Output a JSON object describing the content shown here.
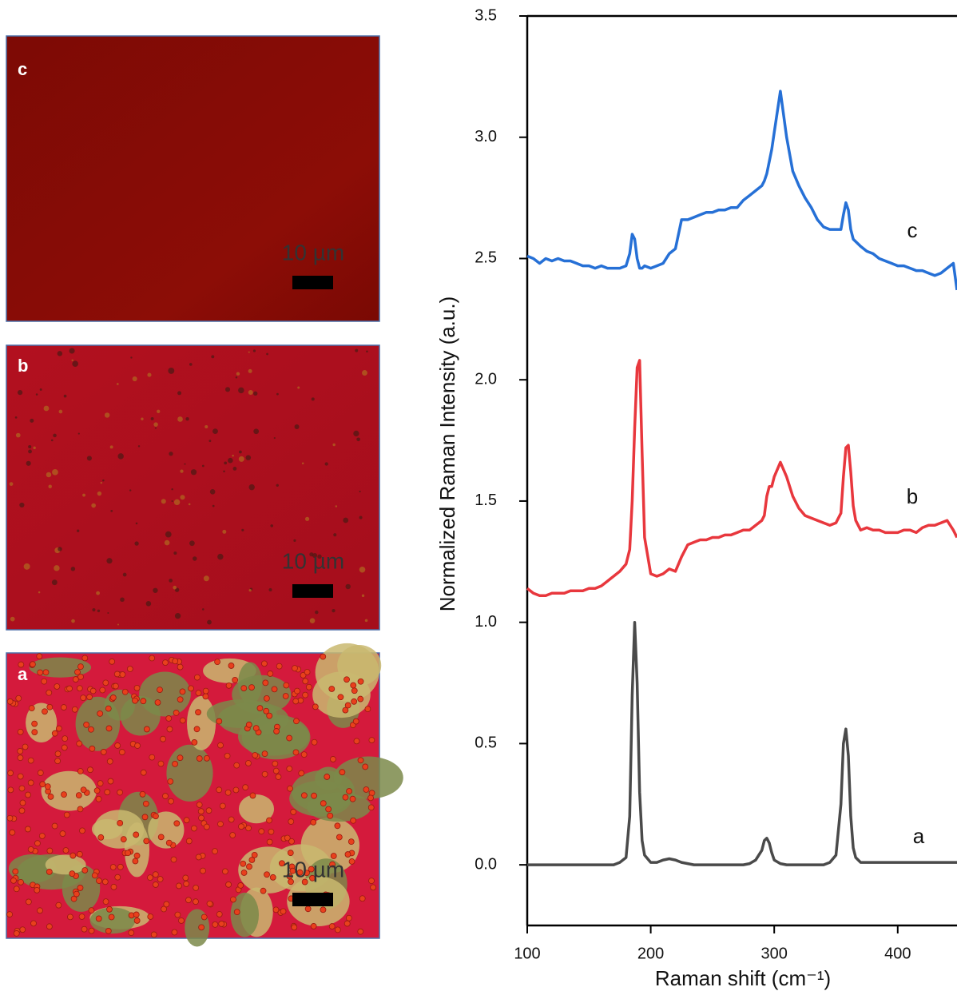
{
  "panels": [
    {
      "label": "c",
      "scale_bar": "10 µm"
    },
    {
      "label": "b",
      "scale_bar": "10 µm"
    },
    {
      "label": "a",
      "scale_bar": "10 µm"
    }
  ],
  "chart_data": {
    "type": "line",
    "xlabel": "Raman shift (cm⁻¹)",
    "ylabel": "Normalized Raman Intensity (a.u.)",
    "xlim": [
      100,
      448
    ],
    "ylim": [
      -0.25,
      3.5
    ],
    "xticks": [
      100,
      200,
      300,
      400
    ],
    "yticks": [
      {
        "value": 0,
        "label": "0.0"
      },
      0.5,
      {
        "value": 1,
        "label": "1.0"
      },
      1.5,
      {
        "value": 2,
        "label": "2.0"
      },
      2.5,
      {
        "value": 3,
        "label": "3.0"
      },
      3.5
    ],
    "x": [
      100,
      105,
      110,
      115,
      120,
      125,
      130,
      135,
      140,
      145,
      150,
      155,
      160,
      165,
      170,
      175,
      180,
      183,
      185,
      187,
      189,
      191,
      193,
      195,
      200,
      205,
      210,
      215,
      220,
      225,
      230,
      235,
      240,
      245,
      250,
      255,
      260,
      265,
      270,
      275,
      280,
      285,
      290,
      292,
      294,
      296,
      298,
      300,
      305,
      310,
      315,
      320,
      325,
      330,
      335,
      340,
      345,
      350,
      354,
      356,
      358,
      360,
      362,
      364,
      366,
      370,
      375,
      380,
      385,
      390,
      395,
      400,
      405,
      410,
      415,
      420,
      425,
      430,
      435,
      440,
      445,
      448
    ],
    "series": [
      {
        "name": "a",
        "color": "#4a4a4a",
        "values": [
          0,
          0,
          0,
          0,
          0,
          0,
          0,
          0,
          0,
          0,
          0,
          0,
          0,
          0,
          0,
          0.01,
          0.03,
          0.2,
          0.7,
          1.0,
          0.75,
          0.3,
          0.1,
          0.04,
          0.01,
          0.01,
          0.02,
          0.025,
          0.02,
          0.01,
          0.005,
          0,
          0,
          0,
          0,
          0,
          0,
          0,
          0,
          0,
          0.005,
          0.02,
          0.06,
          0.1,
          0.11,
          0.09,
          0.05,
          0.02,
          0.005,
          0,
          0,
          0,
          0,
          0,
          0,
          0,
          0.01,
          0.04,
          0.25,
          0.5,
          0.56,
          0.45,
          0.2,
          0.07,
          0.03,
          0.01,
          0.01,
          0.01,
          0.01,
          0.01,
          0.01,
          0.01,
          0.01,
          0.01,
          0.01,
          0.01,
          0.01,
          0.01,
          0.01,
          0.01,
          0.01,
          0.01
        ]
      },
      {
        "name": "b",
        "color": "#e8373d",
        "values": [
          1.14,
          1.12,
          1.11,
          1.11,
          1.12,
          1.12,
          1.12,
          1.13,
          1.13,
          1.13,
          1.14,
          1.14,
          1.15,
          1.17,
          1.19,
          1.21,
          1.24,
          1.3,
          1.5,
          1.8,
          2.05,
          2.08,
          1.7,
          1.35,
          1.2,
          1.19,
          1.2,
          1.22,
          1.21,
          1.27,
          1.32,
          1.33,
          1.34,
          1.34,
          1.35,
          1.35,
          1.36,
          1.36,
          1.37,
          1.38,
          1.38,
          1.4,
          1.42,
          1.44,
          1.52,
          1.56,
          1.56,
          1.6,
          1.66,
          1.6,
          1.52,
          1.47,
          1.44,
          1.43,
          1.42,
          1.41,
          1.4,
          1.41,
          1.45,
          1.6,
          1.72,
          1.73,
          1.62,
          1.48,
          1.42,
          1.38,
          1.39,
          1.38,
          1.38,
          1.37,
          1.37,
          1.37,
          1.38,
          1.38,
          1.37,
          1.39,
          1.4,
          1.4,
          1.41,
          1.42,
          1.38,
          1.35
        ]
      },
      {
        "name": "c",
        "color": "#2670d6",
        "values": [
          2.51,
          2.5,
          2.48,
          2.5,
          2.49,
          2.5,
          2.49,
          2.49,
          2.48,
          2.47,
          2.47,
          2.46,
          2.47,
          2.46,
          2.46,
          2.46,
          2.47,
          2.52,
          2.6,
          2.58,
          2.5,
          2.46,
          2.46,
          2.47,
          2.46,
          2.47,
          2.48,
          2.52,
          2.54,
          2.66,
          2.66,
          2.67,
          2.68,
          2.69,
          2.69,
          2.7,
          2.7,
          2.71,
          2.71,
          2.74,
          2.76,
          2.78,
          2.8,
          2.82,
          2.85,
          2.9,
          2.95,
          3.02,
          3.19,
          3.0,
          2.86,
          2.8,
          2.75,
          2.71,
          2.66,
          2.63,
          2.62,
          2.62,
          2.62,
          2.68,
          2.73,
          2.7,
          2.62,
          2.58,
          2.57,
          2.55,
          2.53,
          2.52,
          2.5,
          2.49,
          2.48,
          2.47,
          2.47,
          2.46,
          2.45,
          2.45,
          2.44,
          2.43,
          2.44,
          2.46,
          2.48,
          2.37
        ]
      }
    ]
  }
}
